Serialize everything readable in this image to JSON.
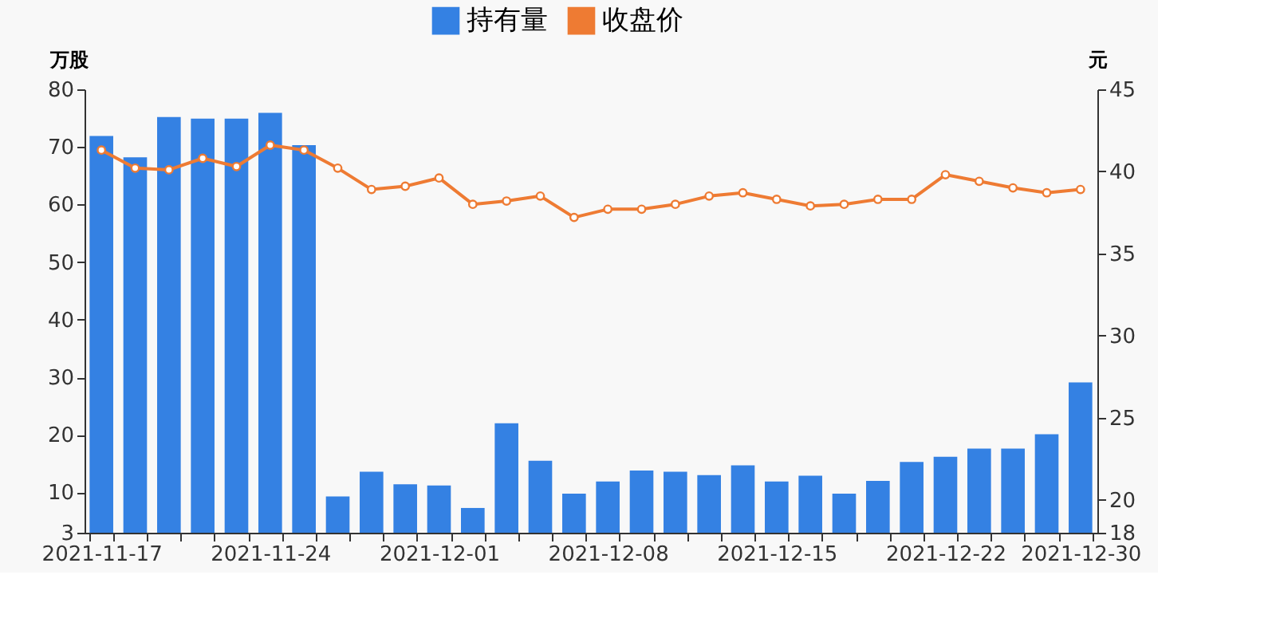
{
  "chart_data": {
    "type": "bar",
    "categories": [
      "2021-11-17",
      null,
      null,
      null,
      null,
      "2021-11-24",
      null,
      null,
      null,
      null,
      "2021-12-01",
      null,
      null,
      null,
      null,
      "2021-12-08",
      null,
      null,
      null,
      null,
      "2021-12-15",
      null,
      null,
      null,
      null,
      "2021-12-22",
      null,
      null,
      null,
      "2021-12-30"
    ],
    "series": [
      {
        "name": "持有量",
        "color": "#3481e3",
        "values": [
          71.9,
          68.2,
          75.2,
          74.9,
          74.9,
          75.9,
          70.3,
          9.3,
          13.6,
          11.4,
          11.2,
          7.3,
          22.0,
          15.5,
          9.8,
          11.9,
          13.8,
          13.6,
          13.0,
          14.7,
          11.9,
          12.9,
          9.8,
          12.0,
          15.3,
          16.2,
          17.6,
          17.6,
          20.1,
          29.1
        ]
      },
      {
        "name": "收盘价",
        "type": "line",
        "axis": "y2",
        "color": "#ee7b33",
        "marker": "circle",
        "values": [
          41.3,
          40.2,
          40.1,
          40.8,
          40.3,
          41.6,
          41.3,
          40.2,
          38.9,
          39.1,
          39.6,
          38.0,
          38.2,
          38.5,
          37.2,
          37.7,
          37.7,
          38.0,
          38.5,
          38.7,
          38.3,
          37.9,
          38.0,
          38.3,
          38.3,
          39.8,
          39.4,
          39.0,
          38.7,
          38.9
        ]
      }
    ],
    "ylabel": "万股",
    "y2label": "元",
    "ylim": [
      3,
      80
    ],
    "yticks": [
      3,
      10,
      20,
      30,
      40,
      50,
      60,
      70,
      80
    ],
    "y2lim": [
      18,
      45
    ],
    "y2ticks": [
      18,
      20,
      25,
      30,
      35,
      40,
      45
    ],
    "legend": "top",
    "grid": false
  }
}
